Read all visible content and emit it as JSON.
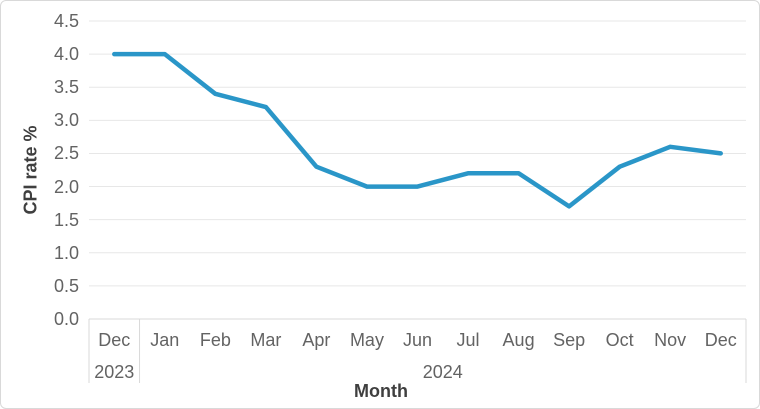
{
  "chart_data": {
    "type": "line",
    "title": "",
    "xlabel": "Month",
    "ylabel": "CPI rate %",
    "categories": [
      "Dec",
      "Jan",
      "Feb",
      "Mar",
      "Apr",
      "May",
      "Jun",
      "Jul",
      "Aug",
      "Sep",
      "Oct",
      "Nov",
      "Dec"
    ],
    "year_groups": [
      {
        "label": "2023",
        "count": 1
      },
      {
        "label": "2024",
        "count": 12
      }
    ],
    "series": [
      {
        "name": "CPI rate %",
        "values": [
          4.0,
          4.0,
          3.4,
          3.2,
          2.3,
          2.0,
          2.0,
          2.2,
          2.2,
          1.7,
          2.3,
          2.6,
          2.5
        ]
      }
    ],
    "ylim": [
      0,
      4.5
    ],
    "ytick_step": 0.5,
    "ytick_labels": [
      "0.0",
      "0.5",
      "1.0",
      "1.5",
      "2.0",
      "2.5",
      "3.0",
      "3.5",
      "4.0",
      "4.5"
    ],
    "grid": "horizontal",
    "legend": "none",
    "colors": {
      "line": "#2a96c8",
      "grid": "#e7e7e7",
      "axis": "#d9d9d9",
      "tick_label": "#636363",
      "axis_title": "#3f3f3f"
    }
  }
}
